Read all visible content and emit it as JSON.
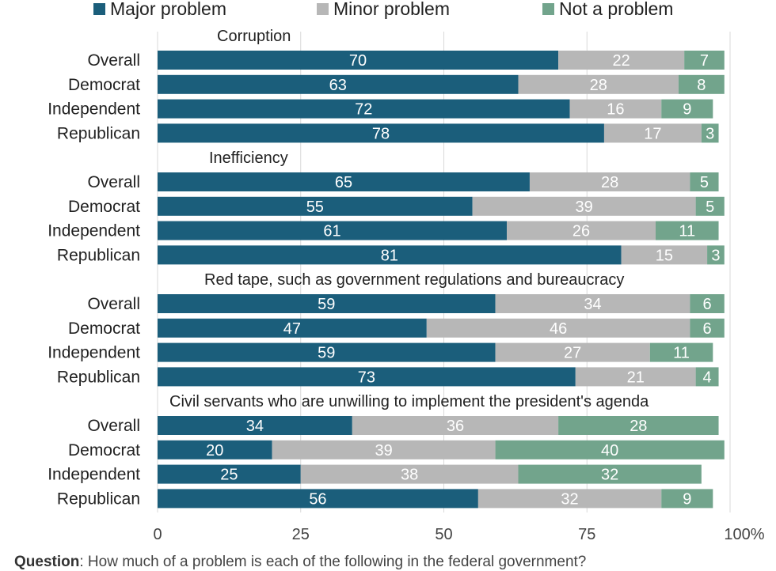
{
  "chart_data": {
    "type": "bar",
    "orientation": "horizontal-stacked",
    "legend": [
      {
        "name": "Major problem",
        "color": "#1b5e7b"
      },
      {
        "name": "Minor problem",
        "color": "#b7b7b7"
      },
      {
        "name": "Not a problem",
        "color": "#72a48c"
      }
    ],
    "legend_position": "top",
    "xlim": [
      0,
      100
    ],
    "xticks": [
      "0",
      "25",
      "50",
      "75",
      "100%"
    ],
    "grid": true,
    "groups": [
      {
        "title": "Corruption",
        "rows": [
          {
            "label": "Overall",
            "values": [
              70,
              22,
              7
            ]
          },
          {
            "label": "Democrat",
            "values": [
              63,
              28,
              8
            ]
          },
          {
            "label": "Independent",
            "values": [
              72,
              16,
              9
            ]
          },
          {
            "label": "Republican",
            "values": [
              78,
              17,
              3
            ]
          }
        ]
      },
      {
        "title": "Inefficiency",
        "rows": [
          {
            "label": "Overall",
            "values": [
              65,
              28,
              5
            ]
          },
          {
            "label": "Democrat",
            "values": [
              55,
              39,
              5
            ]
          },
          {
            "label": "Independent",
            "values": [
              61,
              26,
              11
            ]
          },
          {
            "label": "Republican",
            "values": [
              81,
              15,
              3
            ]
          }
        ]
      },
      {
        "title": "Red tape, such as government regulations and bureaucracy",
        "rows": [
          {
            "label": "Overall",
            "values": [
              59,
              34,
              6
            ]
          },
          {
            "label": "Democrat",
            "values": [
              47,
              46,
              6
            ]
          },
          {
            "label": "Independent",
            "values": [
              59,
              27,
              11
            ]
          },
          {
            "label": "Republican",
            "values": [
              73,
              21,
              4
            ]
          }
        ]
      },
      {
        "title": "Civil servants who are unwilling to implement the president's agenda",
        "rows": [
          {
            "label": "Overall",
            "values": [
              34,
              36,
              28
            ]
          },
          {
            "label": "Democrat",
            "values": [
              20,
              39,
              40
            ]
          },
          {
            "label": "Independent",
            "values": [
              25,
              38,
              32
            ]
          },
          {
            "label": "Republican",
            "values": [
              56,
              32,
              9
            ]
          }
        ]
      }
    ]
  },
  "footnote": {
    "label": "Question",
    "text": ": How much of a problem is each of the following in the federal government?"
  }
}
